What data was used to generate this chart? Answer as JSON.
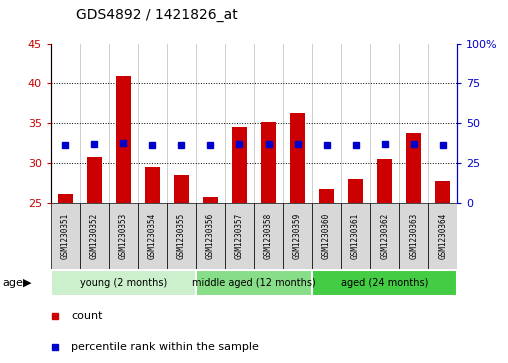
{
  "title": "GDS4892 / 1421826_at",
  "samples": [
    "GSM1230351",
    "GSM1230352",
    "GSM1230353",
    "GSM1230354",
    "GSM1230355",
    "GSM1230356",
    "GSM1230357",
    "GSM1230358",
    "GSM1230359",
    "GSM1230360",
    "GSM1230361",
    "GSM1230362",
    "GSM1230363",
    "GSM1230364"
  ],
  "counts": [
    26.2,
    30.8,
    41.0,
    29.5,
    28.5,
    25.8,
    34.5,
    35.2,
    36.3,
    26.8,
    28.0,
    30.5,
    33.8,
    27.8
  ],
  "percentiles": [
    36.2,
    37.2,
    38.0,
    36.7,
    36.8,
    36.5,
    37.3,
    37.3,
    37.4,
    36.4,
    36.6,
    37.0,
    37.3,
    36.8
  ],
  "ylim_left": [
    25,
    45
  ],
  "ylim_right": [
    0,
    100
  ],
  "yticks_left": [
    25,
    30,
    35,
    40,
    45
  ],
  "yticks_right": [
    0,
    25,
    50,
    75,
    100
  ],
  "bar_color": "#cc0000",
  "dot_color": "#0000cc",
  "groups": [
    {
      "label": "young (2 months)",
      "start": 0,
      "end": 5,
      "color": "#ccf0cc"
    },
    {
      "label": "middle aged (12 months)",
      "start": 5,
      "end": 9,
      "color": "#88dd88"
    },
    {
      "label": "aged (24 months)",
      "start": 9,
      "end": 14,
      "color": "#44cc44"
    }
  ],
  "age_label": "age",
  "legend_count": "count",
  "legend_percentile": "percentile rank within the sample",
  "plot_bg_color": "#ffffff",
  "title_color": "#000000",
  "left_axis_color": "#cc0000",
  "right_axis_color": "#0000cc",
  "xtick_bg_color": "#d8d8d8",
  "grid_lines": [
    30,
    35,
    40
  ]
}
